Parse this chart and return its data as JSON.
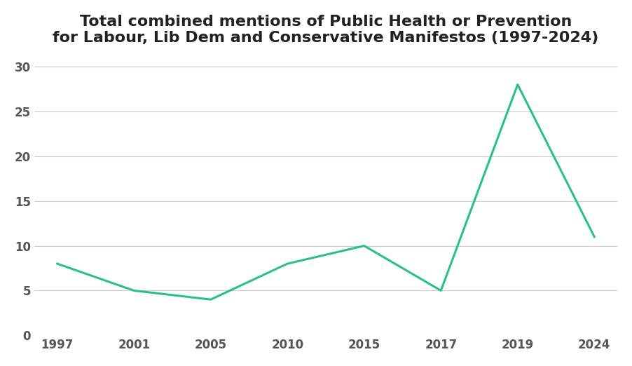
{
  "title_line1": "Total combined mentions of Public Health or Prevention",
  "title_line2": "for Labour, Lib Dem and Conservative Manifestos (1997-2024)",
  "x_labels": [
    "1997",
    "2001",
    "2005",
    "2010",
    "2015",
    "2017",
    "2019",
    "2024"
  ],
  "y": [
    8,
    5,
    4,
    8,
    10,
    5,
    28,
    11
  ],
  "line_color": "#2bbf8e",
  "line_width": 2.2,
  "background_color": "#ffffff",
  "yticks": [
    0,
    5,
    10,
    15,
    20,
    25,
    30
  ],
  "ylim": [
    0,
    31
  ],
  "title_fontsize": 16,
  "tick_fontsize": 12,
  "grid_color": "#cccccc",
  "grid_linewidth": 0.8
}
